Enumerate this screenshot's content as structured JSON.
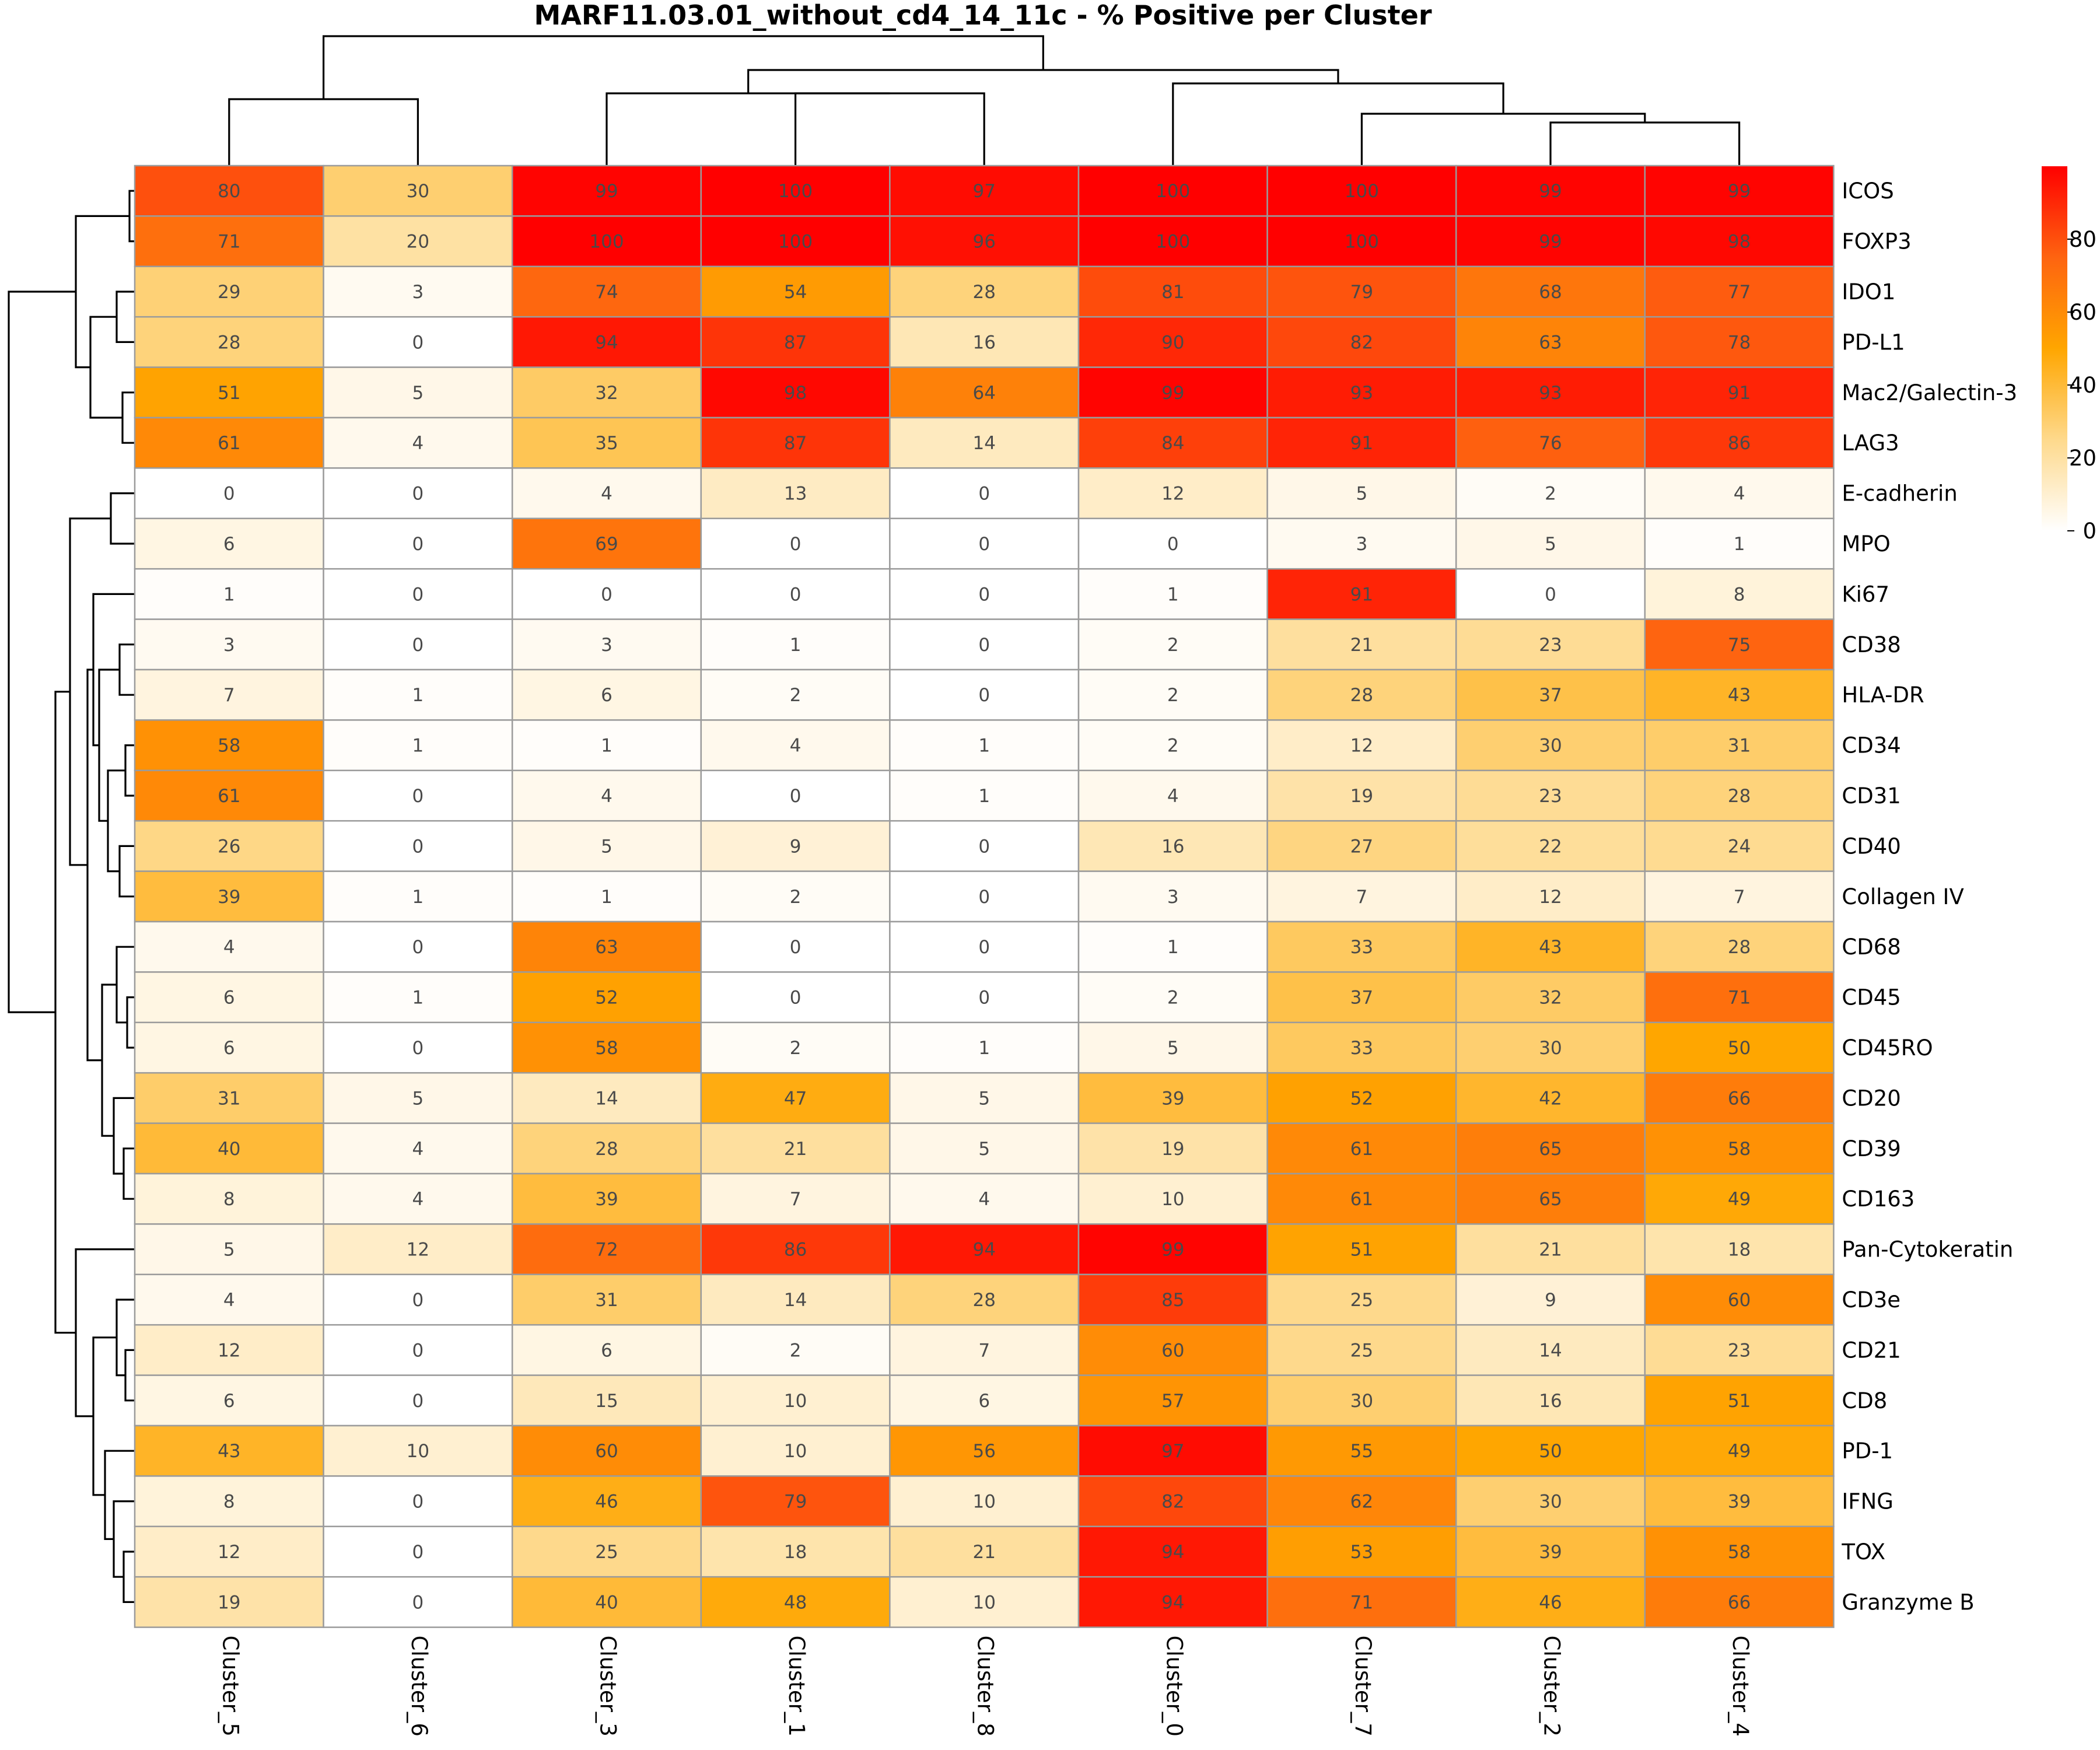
{
  "chart_data": {
    "type": "heatmap",
    "title": "MARF11.03.01_without_cd4_14_11c - % Positive per Cluster",
    "xlabel": "",
    "ylabel": "",
    "columns": [
      "Cluster_5",
      "Cluster_6",
      "Cluster_3",
      "Cluster_1",
      "Cluster_8",
      "Cluster_0",
      "Cluster_7",
      "Cluster_2",
      "Cluster_4"
    ],
    "rows": [
      "ICOS",
      "FOXP3",
      "IDO1",
      "PD-L1",
      "Mac2/Galectin-3",
      "LAG3",
      "E-cadherin",
      "MPO",
      "Ki67",
      "CD38",
      "HLA-DR",
      "CD34",
      "CD31",
      "CD40",
      "Collagen IV",
      "CD68",
      "CD45",
      "CD45RO",
      "CD20",
      "CD39",
      "CD163",
      "Pan-Cytokeratin",
      "CD3e",
      "CD21",
      "CD8",
      "PD-1",
      "IFNG",
      "TOX",
      "Granzyme B"
    ],
    "values": [
      [
        80,
        30,
        99,
        100,
        97,
        100,
        100,
        99,
        99
      ],
      [
        71,
        20,
        100,
        100,
        96,
        100,
        100,
        99,
        98
      ],
      [
        29,
        3,
        74,
        54,
        28,
        81,
        79,
        68,
        77
      ],
      [
        28,
        0,
        94,
        87,
        16,
        90,
        82,
        63,
        78
      ],
      [
        51,
        5,
        32,
        98,
        64,
        99,
        93,
        93,
        91
      ],
      [
        61,
        4,
        35,
        87,
        14,
        84,
        91,
        76,
        86
      ],
      [
        0,
        0,
        4,
        13,
        0,
        12,
        5,
        2,
        4
      ],
      [
        6,
        0,
        69,
        0,
        0,
        0,
        3,
        5,
        1
      ],
      [
        1,
        0,
        0,
        0,
        0,
        1,
        91,
        0,
        8
      ],
      [
        3,
        0,
        3,
        1,
        0,
        2,
        21,
        23,
        75
      ],
      [
        7,
        1,
        6,
        2,
        0,
        2,
        28,
        37,
        43
      ],
      [
        58,
        1,
        1,
        4,
        1,
        2,
        12,
        30,
        31
      ],
      [
        61,
        0,
        4,
        0,
        1,
        4,
        19,
        23,
        28
      ],
      [
        26,
        0,
        5,
        9,
        0,
        16,
        27,
        22,
        24
      ],
      [
        39,
        1,
        1,
        2,
        0,
        3,
        7,
        12,
        7
      ],
      [
        4,
        0,
        63,
        0,
        0,
        1,
        33,
        43,
        28
      ],
      [
        6,
        1,
        52,
        0,
        0,
        2,
        37,
        32,
        71
      ],
      [
        6,
        0,
        58,
        2,
        1,
        5,
        33,
        30,
        50
      ],
      [
        31,
        5,
        14,
        47,
        5,
        39,
        52,
        42,
        66
      ],
      [
        40,
        4,
        28,
        21,
        5,
        19,
        61,
        65,
        58
      ],
      [
        8,
        4,
        39,
        7,
        4,
        10,
        61,
        65,
        49
      ],
      [
        5,
        12,
        72,
        86,
        94,
        99,
        51,
        21,
        18
      ],
      [
        4,
        0,
        31,
        14,
        28,
        85,
        25,
        9,
        60
      ],
      [
        12,
        0,
        6,
        2,
        7,
        60,
        25,
        14,
        23
      ],
      [
        6,
        0,
        15,
        10,
        6,
        57,
        30,
        16,
        51
      ],
      [
        43,
        10,
        60,
        10,
        56,
        97,
        55,
        50,
        49
      ],
      [
        8,
        0,
        46,
        79,
        10,
        82,
        62,
        30,
        39
      ],
      [
        12,
        0,
        25,
        18,
        21,
        94,
        53,
        39,
        58
      ],
      [
        19,
        0,
        40,
        48,
        10,
        94,
        71,
        46,
        66
      ]
    ],
    "colorbar": {
      "min": 0,
      "max": 100,
      "ticks": [
        0,
        20,
        40,
        60,
        80
      ],
      "tick_labels": [
        "0",
        "20",
        "40",
        "60",
        "80"
      ],
      "colors": [
        "#ffffff",
        "#fed98c",
        "#ffa600",
        "#fe6410",
        "#ff0000"
      ]
    },
    "legend": "right"
  }
}
